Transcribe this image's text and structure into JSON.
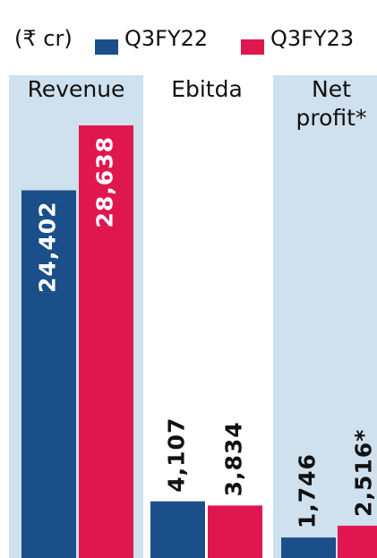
{
  "chart_data": {
    "type": "bar",
    "subtitle": "(₹ cr)",
    "categories": [
      "Revenue",
      "Ebitda",
      "Net profit*"
    ],
    "series": [
      {
        "name": "Q3FY22",
        "color": "#1b4f8a",
        "values": [
          24402,
          4107,
          1746
        ],
        "value_labels": [
          "24,402",
          "4,107",
          "1,746"
        ]
      },
      {
        "name": "Q3FY23",
        "color": "#e0174f",
        "values": [
          28638,
          3834,
          2516
        ],
        "value_labels": [
          "28,638",
          "3,834",
          "2,516*"
        ]
      }
    ]
  }
}
